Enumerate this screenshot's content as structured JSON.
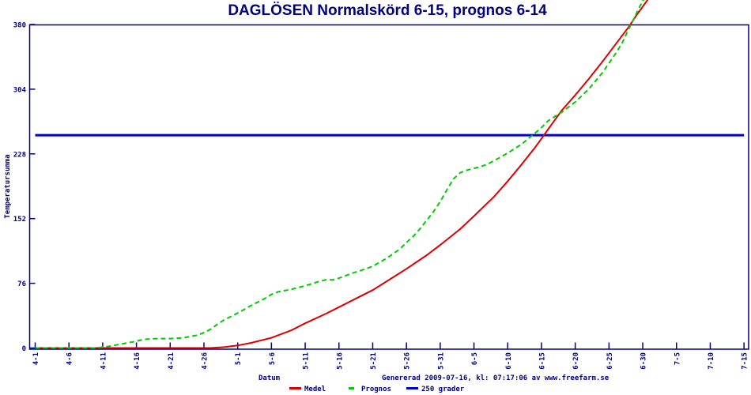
{
  "footer": {
    "generated_text": "Genererad 2009-07-16, kl: 07:17:06 av www.freefarm.se"
  },
  "colors": {
    "axis": "#000080",
    "text": "#000080",
    "background": "#ffffff",
    "medel": "#dd0000",
    "prognos": "#00cc00",
    "reference": "#0000cc"
  },
  "chart_data": {
    "type": "line",
    "title": "DAGLÖSEN Normalskörd 6-15, prognos 6-14",
    "xlabel": "Datum",
    "ylabel": "Temperatursumma",
    "ylim": [
      0,
      380
    ],
    "grid": false,
    "legend_position": "bottom-center",
    "y_ticks": [
      0,
      76,
      152,
      228,
      304,
      380
    ],
    "x_tick_labels": [
      "4-1",
      "4-6",
      "4-11",
      "4-16",
      "4-21",
      "4-26",
      "5-1",
      "5-6",
      "5-11",
      "5-16",
      "5-21",
      "5-26",
      "5-31",
      "6-5",
      "6-10",
      "6-15",
      "6-20",
      "6-25",
      "6-30",
      "7-5",
      "7-10",
      "7-15"
    ],
    "x_tick_days": [
      0,
      5,
      10,
      15,
      20,
      25,
      30,
      35,
      40,
      45,
      50,
      55,
      60,
      65,
      70,
      75,
      80,
      85,
      90,
      95,
      100,
      105
    ],
    "reference_line": {
      "label": "250 grader",
      "value": 250,
      "color": "#0000cc"
    },
    "series": [
      {
        "name": "Medel",
        "color": "#dd0000",
        "style": "solid",
        "points": [
          [
            0,
            0
          ],
          [
            5,
            0
          ],
          [
            10,
            0
          ],
          [
            15,
            0
          ],
          [
            20,
            0
          ],
          [
            24,
            0
          ],
          [
            26,
            0
          ],
          [
            28,
            1
          ],
          [
            30,
            3
          ],
          [
            32,
            6
          ],
          [
            35,
            12
          ],
          [
            38,
            21
          ],
          [
            40,
            29
          ],
          [
            43,
            40
          ],
          [
            45,
            48
          ],
          [
            48,
            60
          ],
          [
            50,
            68
          ],
          [
            53,
            83
          ],
          [
            55,
            93
          ],
          [
            58,
            109
          ],
          [
            60,
            121
          ],
          [
            63,
            140
          ],
          [
            65,
            155
          ],
          [
            68,
            178
          ],
          [
            70,
            196
          ],
          [
            72,
            215
          ],
          [
            74,
            235
          ],
          [
            75,
            246
          ],
          [
            76,
            257
          ],
          [
            77,
            268
          ],
          [
            78,
            279
          ],
          [
            80,
            297
          ],
          [
            82,
            316
          ],
          [
            84,
            336
          ],
          [
            86,
            357
          ],
          [
            88,
            378
          ],
          [
            89,
            390
          ],
          [
            90,
            401
          ],
          [
            91,
            412
          ]
        ]
      },
      {
        "name": "Prognos",
        "color": "#00cc00",
        "style": "dashed",
        "points": [
          [
            0,
            0
          ],
          [
            5,
            0
          ],
          [
            9,
            0
          ],
          [
            11,
            2
          ],
          [
            13,
            5
          ],
          [
            15,
            8
          ],
          [
            16,
            10
          ],
          [
            18,
            11
          ],
          [
            20,
            11
          ],
          [
            22,
            12
          ],
          [
            24,
            15
          ],
          [
            25,
            18
          ],
          [
            26,
            22
          ],
          [
            27,
            28
          ],
          [
            28,
            33
          ],
          [
            30,
            41
          ],
          [
            32,
            50
          ],
          [
            34,
            58
          ],
          [
            35,
            63
          ],
          [
            36,
            66
          ],
          [
            38,
            69
          ],
          [
            40,
            73
          ],
          [
            42,
            78
          ],
          [
            43,
            80
          ],
          [
            44,
            80
          ],
          [
            45,
            82
          ],
          [
            47,
            88
          ],
          [
            49,
            93
          ],
          [
            50,
            96
          ],
          [
            52,
            105
          ],
          [
            54,
            116
          ],
          [
            55,
            124
          ],
          [
            56,
            131
          ],
          [
            57,
            140
          ],
          [
            58,
            150
          ],
          [
            59,
            160
          ],
          [
            60,
            172
          ],
          [
            61,
            186
          ],
          [
            62,
            199
          ],
          [
            63,
            206
          ],
          [
            64,
            209
          ],
          [
            65,
            211
          ],
          [
            66,
            213
          ],
          [
            67,
            216
          ],
          [
            68,
            220
          ],
          [
            70,
            229
          ],
          [
            72,
            239
          ],
          [
            74,
            252
          ],
          [
            75,
            259
          ],
          [
            76,
            267
          ],
          [
            77,
            272
          ],
          [
            78,
            277
          ],
          [
            80,
            289
          ],
          [
            82,
            304
          ],
          [
            84,
            323
          ],
          [
            86,
            346
          ],
          [
            87,
            359
          ],
          [
            88,
            376
          ],
          [
            89,
            392
          ],
          [
            90,
            408
          ],
          [
            90.5,
            412
          ]
        ]
      }
    ]
  }
}
